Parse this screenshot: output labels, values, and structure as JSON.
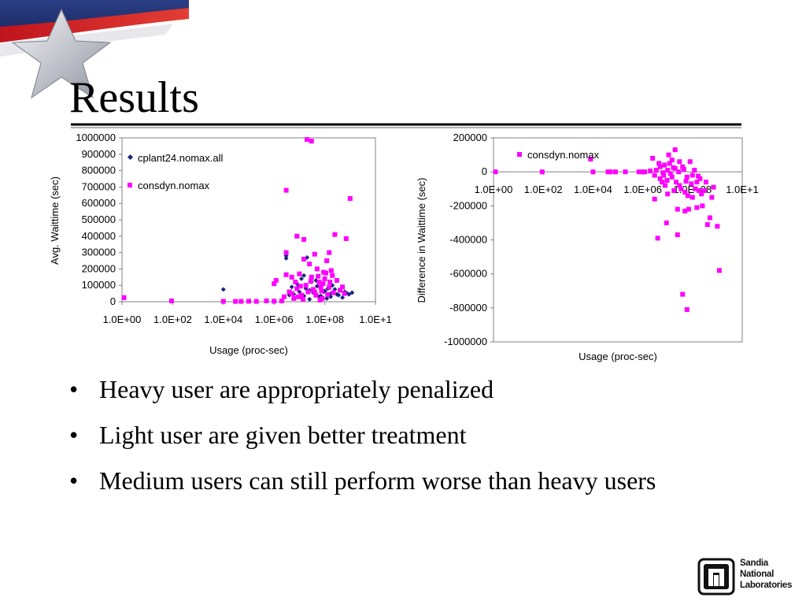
{
  "slide": {
    "title": "Results",
    "bullets": [
      "Heavy user are appropriately penalized",
      "Light user are given better treatment",
      "Medium users can still perform worse than heavy users"
    ],
    "logo_text": "Sandia National Laboratories"
  },
  "colors": {
    "series_dark": "#1a237e",
    "series_magenta": "#ff00ff",
    "title_rule": "#000000"
  },
  "chart_data": [
    {
      "type": "scatter",
      "title": "",
      "xlabel": "Usage (proc-sec)",
      "ylabel": "Avg. Waittime (sec)",
      "x_scale": "log10",
      "xlim": [
        1,
        10000000000
      ],
      "ylim": [
        0,
        1000000
      ],
      "x_ticks": [
        "1.0E+00",
        "1.0E+02",
        "1.0E+04",
        "1.0E+06",
        "1.0E+08",
        "1.0E+1"
      ],
      "y_ticks": [
        "0",
        "100000",
        "200000",
        "300000",
        "400000",
        "500000",
        "600000",
        "700000",
        "800000",
        "900000",
        "1000000"
      ],
      "grid": false,
      "legend": "top-left",
      "series": [
        {
          "name": "cplant24.nomax.all",
          "color": "#1a237e",
          "marker": "diamond",
          "points": [
            [
              10000,
              75000
            ],
            [
              30000,
              2000
            ],
            [
              200000,
              3000
            ],
            [
              1000000,
              6000
            ],
            [
              2000000,
              8000
            ],
            [
              3000000,
              280000
            ],
            [
              3000000,
              265000
            ],
            [
              4000000,
              40000
            ],
            [
              5000000,
              90000
            ],
            [
              6000000,
              20000
            ],
            [
              8000000,
              110000
            ],
            [
              10000000,
              60000
            ],
            [
              12000000,
              140000
            ],
            [
              15000000,
              35000
            ],
            [
              15000000,
              160000
            ],
            [
              20000000,
              270000
            ],
            [
              25000000,
              70000
            ],
            [
              30000000,
              120000
            ],
            [
              40000000,
              50000
            ],
            [
              50000000,
              95000
            ],
            [
              60000000,
              30000
            ],
            [
              80000000,
              110000
            ],
            [
              100000000,
              65000
            ],
            [
              120000000,
              20000
            ],
            [
              150000000,
              85000
            ],
            [
              180000000,
              50000
            ],
            [
              200000000,
              100000
            ],
            [
              300000000,
              45000
            ],
            [
              400000000,
              70000
            ],
            [
              500000000,
              25000
            ],
            [
              700000000,
              55000
            ],
            [
              900000000,
              45000
            ],
            [
              1200000000,
              55000
            ],
            [
              6000000,
              45000
            ],
            [
              9000000,
              90000
            ],
            [
              12000000,
              25000
            ],
            [
              18000000,
              80000
            ],
            [
              25000000,
              15000
            ],
            [
              35000000,
              55000
            ],
            [
              45000000,
              130000
            ],
            [
              70000000,
              35000
            ],
            [
              90000000,
              60000
            ],
            [
              130000000,
              80000
            ],
            [
              170000000,
              30000
            ],
            [
              250000000,
              75000
            ],
            [
              350000000,
              40000
            ],
            [
              600000000,
              60000
            ]
          ]
        },
        {
          "name": "consdyn.nomax",
          "color": "#ff00ff",
          "marker": "square",
          "points": [
            [
              1.2,
              25000
            ],
            [
              90,
              5000
            ],
            [
              10000,
              2000
            ],
            [
              30000,
              2000
            ],
            [
              50000,
              2000
            ],
            [
              100000,
              3000
            ],
            [
              200000,
              2000
            ],
            [
              500000,
              5000
            ],
            [
              1000000,
              3000
            ],
            [
              1000000,
              110000
            ],
            [
              1200000,
              130000
            ],
            [
              2000000,
              5000
            ],
            [
              2500000,
              30000
            ],
            [
              3000000,
              680000
            ],
            [
              3000000,
              300000
            ],
            [
              3000000,
              165000
            ],
            [
              4000000,
              60000
            ],
            [
              5000000,
              150000
            ],
            [
              6000000,
              20000
            ],
            [
              8000000,
              400000
            ],
            [
              8000000,
              80000
            ],
            [
              10000000,
              170000
            ],
            [
              12000000,
              40000
            ],
            [
              15000000,
              380000
            ],
            [
              15000000,
              260000
            ],
            [
              18000000,
              100000
            ],
            [
              20000000,
              990000
            ],
            [
              25000000,
              230000
            ],
            [
              30000000,
              980000
            ],
            [
              30000000,
              150000
            ],
            [
              40000000,
              290000
            ],
            [
              40000000,
              60000
            ],
            [
              50000000,
              200000
            ],
            [
              60000000,
              120000
            ],
            [
              70000000,
              90000
            ],
            [
              80000000,
              20000
            ],
            [
              90000000,
              180000
            ],
            [
              100000000,
              140000
            ],
            [
              120000000,
              250000
            ],
            [
              150000000,
              300000
            ],
            [
              150000000,
              90000
            ],
            [
              180000000,
              190000
            ],
            [
              200000000,
              160000
            ],
            [
              250000000,
              410000
            ],
            [
              300000000,
              130000
            ],
            [
              400000000,
              70000
            ],
            [
              500000000,
              90000
            ],
            [
              700000000,
              385000
            ],
            [
              1000000000,
              630000
            ],
            [
              5000000,
              50000
            ],
            [
              7000000,
              120000
            ],
            [
              9000000,
              30000
            ],
            [
              11000000,
              95000
            ],
            [
              14000000,
              15000
            ],
            [
              22000000,
              60000
            ],
            [
              28000000,
              125000
            ],
            [
              35000000,
              75000
            ],
            [
              45000000,
              40000
            ],
            [
              55000000,
              155000
            ],
            [
              65000000,
              10000
            ],
            [
              75000000,
              65000
            ],
            [
              85000000,
              110000
            ],
            [
              110000000,
              175000
            ],
            [
              130000000,
              45000
            ],
            [
              160000000,
              120000
            ],
            [
              220000000,
              55000
            ],
            [
              600000000,
              50000
            ]
          ]
        }
      ]
    },
    {
      "type": "scatter",
      "title": "",
      "xlabel": "Usage (proc-sec)",
      "ylabel": "Difference in  Waittime (sec)",
      "x_scale": "log10",
      "xlim": [
        1,
        10000000000
      ],
      "ylim": [
        -1000000,
        200000
      ],
      "x_ticks": [
        "1.0E+00",
        "1.0E+02",
        "1.0E+04",
        "1.0E+06",
        "1.0E+08",
        "1.0E+1"
      ],
      "y_ticks": [
        "-1000000",
        "-800000",
        "-600000",
        "-400000",
        "-200000",
        "0",
        "200000"
      ],
      "grid": false,
      "legend": "top-left",
      "series": [
        {
          "name": "consdyn.nomax",
          "color": "#ff00ff",
          "marker": "square",
          "points": [
            [
              1.2,
              0
            ],
            [
              90,
              0
            ],
            [
              8000,
              75000
            ],
            [
              10000,
              0
            ],
            [
              40000,
              0
            ],
            [
              50000,
              0
            ],
            [
              80000,
              0
            ],
            [
              200000,
              0
            ],
            [
              700000,
              0
            ],
            [
              1000000,
              0
            ],
            [
              1200000,
              0
            ],
            [
              2000000,
              5000
            ],
            [
              2500000,
              80000
            ],
            [
              3000000,
              -20000
            ],
            [
              3000000,
              -160000
            ],
            [
              4000000,
              -390000
            ],
            [
              5000000,
              -40000
            ],
            [
              5000000,
              30000
            ],
            [
              6000000,
              -60000
            ],
            [
              7000000,
              -20000
            ],
            [
              8000000,
              -80000
            ],
            [
              9000000,
              -300000
            ],
            [
              10000000,
              -130000
            ],
            [
              10000000,
              10000
            ],
            [
              12000000,
              50000
            ],
            [
              15000000,
              70000
            ],
            [
              15000000,
              -30000
            ],
            [
              18000000,
              -110000
            ],
            [
              20000000,
              20000
            ],
            [
              20000000,
              130000
            ],
            [
              25000000,
              -220000
            ],
            [
              25000000,
              -370000
            ],
            [
              30000000,
              -80000
            ],
            [
              30000000,
              60000
            ],
            [
              40000000,
              -720000
            ],
            [
              40000000,
              30000
            ],
            [
              50000000,
              -230000
            ],
            [
              50000000,
              -120000
            ],
            [
              60000000,
              -810000
            ],
            [
              60000000,
              -30000
            ],
            [
              70000000,
              -220000
            ],
            [
              80000000,
              60000
            ],
            [
              100000000,
              -20000
            ],
            [
              100000000,
              -150000
            ],
            [
              120000000,
              10000
            ],
            [
              150000000,
              -210000
            ],
            [
              150000000,
              -60000
            ],
            [
              180000000,
              -110000
            ],
            [
              200000000,
              -40000
            ],
            [
              250000000,
              -200000
            ],
            [
              300000000,
              -110000
            ],
            [
              400000000,
              -310000
            ],
            [
              500000000,
              -270000
            ],
            [
              700000000,
              -90000
            ],
            [
              1000000000,
              -320000
            ],
            [
              1200000000,
              -580000
            ],
            [
              3500000,
              10000
            ],
            [
              4500000,
              50000
            ],
            [
              6500000,
              -5000
            ],
            [
              7500000,
              40000
            ],
            [
              9500000,
              -50000
            ],
            [
              11000000,
              100000
            ],
            [
              13000000,
              -10000
            ],
            [
              17000000,
              25000
            ],
            [
              22000000,
              -60000
            ],
            [
              28000000,
              0
            ],
            [
              35000000,
              -100000
            ],
            [
              45000000,
              15000
            ],
            [
              55000000,
              -55000
            ],
            [
              65000000,
              -140000
            ],
            [
              90000000,
              -70000
            ],
            [
              130000000,
              -100000
            ],
            [
              170000000,
              -25000
            ],
            [
              230000000,
              -130000
            ],
            [
              350000000,
              -60000
            ],
            [
              600000000,
              -150000
            ]
          ]
        }
      ]
    }
  ]
}
